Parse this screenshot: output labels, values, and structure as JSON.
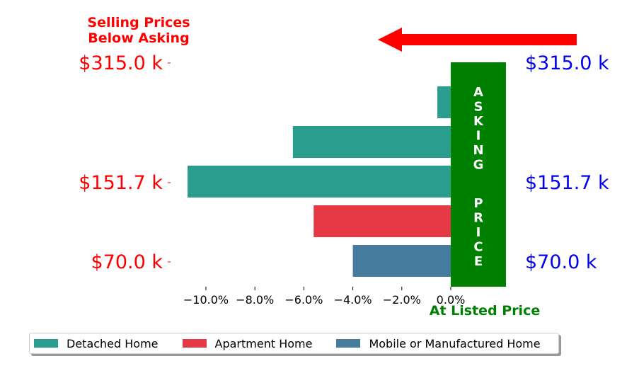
{
  "title_lines": [
    "Selling Prices",
    "Below Asking"
  ],
  "asking_banner": "ASKING PRICE",
  "at_listed_label": "At Listed Price",
  "colors": {
    "detached": "#2a9d8f",
    "apartment": "#e63946",
    "mobile": "#457b9d",
    "below": "#ff0000",
    "price_right": "#0000ee",
    "banner": "#008000"
  },
  "chart_data": {
    "type": "bar",
    "orientation": "horizontal",
    "xlim": [
      -11.5,
      1.0
    ],
    "x_ticks": [
      "−10.0%",
      "−8.0%",
      "−6.0%",
      "−4.0%",
      "−2.0%",
      "0.0%"
    ],
    "x_tick_values": [
      -10,
      -8,
      -6,
      -4,
      -2,
      0
    ],
    "price_ticks": [
      "$315.0 k",
      "$151.7 k",
      "$70.0 k"
    ],
    "price_ticks_left": [
      "$315.0 k",
      "$151.7 k",
      "$70.0 k"
    ],
    "bars": [
      {
        "category": "Detached Home",
        "value": -0.55
      },
      {
        "category": "Detached Home",
        "value": -6.45
      },
      {
        "category": "Detached Home",
        "value": -10.75
      },
      {
        "category": "Apartment Home",
        "value": -5.6
      },
      {
        "category": "Mobile or Manufactured Home",
        "value": -4.0
      }
    ],
    "legend": [
      "Detached Home",
      "Apartment Home",
      "Mobile or Manufactured Home"
    ],
    "legend_placement": "bottom"
  }
}
